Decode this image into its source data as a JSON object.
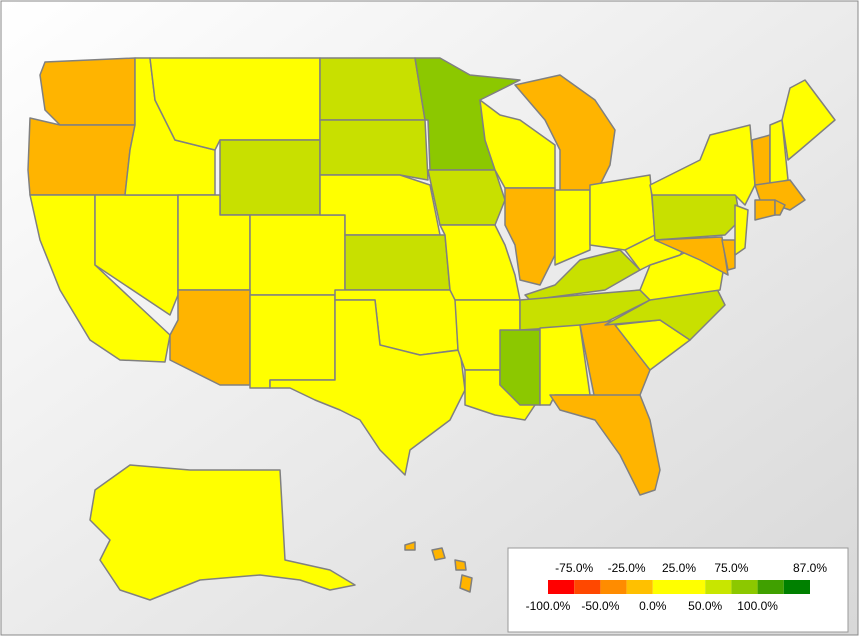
{
  "legend": {
    "colors": [
      "#ff0000",
      "#ff4800",
      "#ff8c00",
      "#ffc000",
      "#ffff00",
      "#ffff00",
      "#c8e600",
      "#8cc800",
      "#40a000",
      "#008000"
    ],
    "labels": [
      "-100.0%",
      "-75.0%",
      "-50.0%",
      "-25.0%",
      "0.0%",
      "25.0%",
      "50.0%",
      "75.0%",
      "100.0%",
      "87.0%"
    ]
  },
  "regions": [
    {
      "color": "#ffb400"
    },
    {
      "color": "#ffb400"
    },
    {
      "color": "#ffff00"
    },
    {
      "color": "#ffff00"
    },
    {
      "color": "#ffff00"
    },
    {
      "color": "#ffff00"
    },
    {
      "color": "#c8e000"
    },
    {
      "color": "#ffff00"
    },
    {
      "color": "#ffff00"
    },
    {
      "color": "#ffb400"
    },
    {
      "color": "#ffff00"
    },
    {
      "color": "#c8e000"
    },
    {
      "color": "#c8e000"
    },
    {
      "color": "#ffff00"
    },
    {
      "color": "#c8e000"
    },
    {
      "color": "#ffff00"
    },
    {
      "color": "#ffff00"
    },
    {
      "color": "#8cc800"
    },
    {
      "color": "#c8e000"
    },
    {
      "color": "#ffff00"
    },
    {
      "color": "#ffff00"
    },
    {
      "color": "#ffff00"
    },
    {
      "color": "#ffff00"
    },
    {
      "color": "#ffb400"
    },
    {
      "color": "#ffb400"
    },
    {
      "color": "#ffff00"
    },
    {
      "color": "#ffff00"
    },
    {
      "color": "#c8e000"
    },
    {
      "color": "#c8e000"
    },
    {
      "color": "#8cc800"
    },
    {
      "color": "#ffff00"
    },
    {
      "color": "#ffb400"
    },
    {
      "color": "#ffb400"
    },
    {
      "color": "#ffff00"
    },
    {
      "color": "#c8e000"
    },
    {
      "color": "#ffff00"
    },
    {
      "color": "#ffff00"
    },
    {
      "color": "#c8e000"
    },
    {
      "color": "#ffb400"
    },
    {
      "color": "#ffb400"
    },
    {
      "color": "#ffff00"
    },
    {
      "color": "#ffff00"
    },
    {
      "color": "#ffb400"
    },
    {
      "color": "#ffff00"
    },
    {
      "color": "#ffff00"
    },
    {
      "color": "#ffb400"
    },
    {
      "color": "#ffb400"
    },
    {
      "color": "#ffb400"
    },
    {
      "color": "#ffff00"
    },
    {
      "color": "#ffb400"
    }
  ]
}
